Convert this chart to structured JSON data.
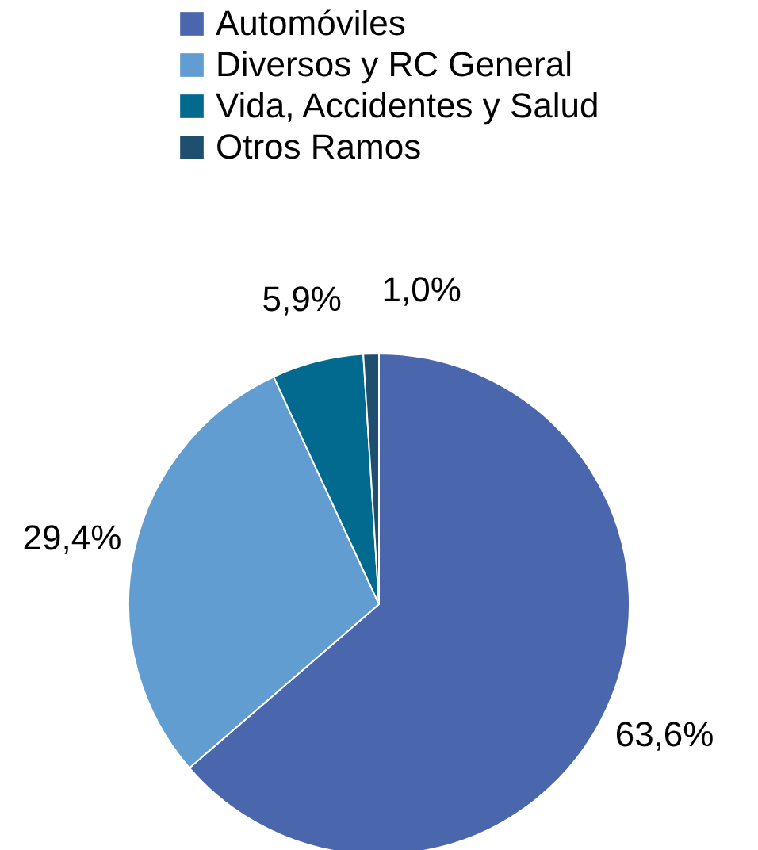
{
  "chart_data": {
    "type": "pie",
    "categories": [
      "Automóviles",
      "Diversos y RC General",
      "Vida, Accidentes y Salud",
      "Otros Ramos"
    ],
    "values": [
      63.6,
      29.4,
      5.9,
      1.0
    ],
    "colors": [
      "#4a66ac",
      "#629dd1",
      "#02698f",
      "#1e4f70"
    ],
    "value_labels": [
      "63,6%",
      "29,4%",
      "5,9%",
      "1,0%"
    ],
    "legend": "top"
  }
}
